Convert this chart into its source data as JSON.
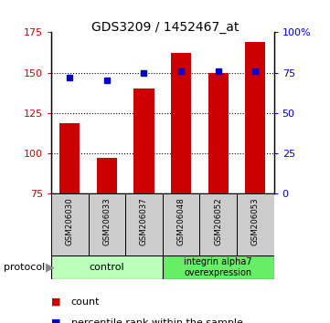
{
  "title": "GDS3209 / 1452467_at",
  "samples": [
    "GSM206030",
    "GSM206033",
    "GSM206037",
    "GSM206048",
    "GSM206052",
    "GSM206053"
  ],
  "counts": [
    119,
    97,
    140,
    162,
    150,
    169
  ],
  "percentiles": [
    72,
    70,
    75,
    76,
    76,
    76
  ],
  "ylim_left": [
    75,
    175
  ],
  "ylim_right": [
    0,
    100
  ],
  "yticks_left": [
    75,
    100,
    125,
    150,
    175
  ],
  "yticks_right": [
    0,
    25,
    50,
    75,
    100
  ],
  "ytick_right_labels": [
    "0",
    "25",
    "50",
    "75",
    "100%"
  ],
  "bar_color": "#cc0000",
  "dot_color": "#0000cc",
  "group1_label": "control",
  "group2_label": "integrin alpha7\noverexpression",
  "group1_color": "#bbffbb",
  "group2_color": "#66ee66",
  "protocol_label": "protocol",
  "legend_count": "count",
  "legend_pct": "percentile rank within the sample",
  "bar_bottom": 75,
  "n_group1": 3,
  "n_group2": 3
}
